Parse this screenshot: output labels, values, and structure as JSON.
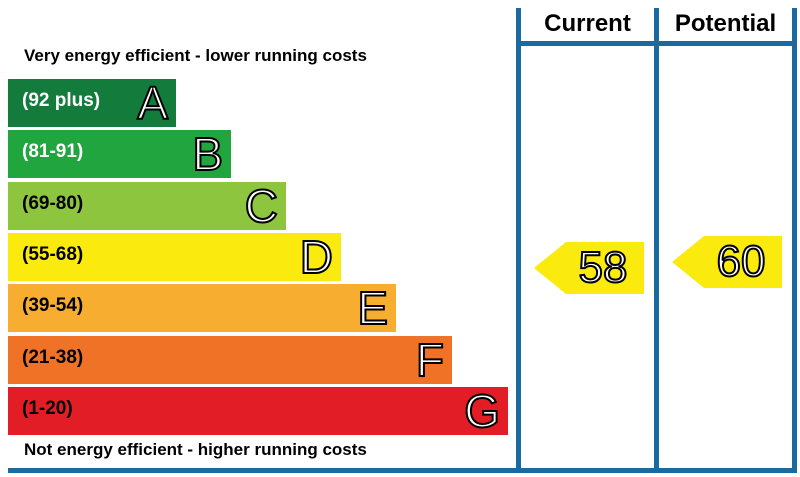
{
  "captions": {
    "top": "Very energy efficient - lower running costs",
    "bottom": "Not energy efficient - higher running costs"
  },
  "columns": {
    "current": "Current",
    "potential": "Potential"
  },
  "bands": [
    {
      "letter": "A",
      "range": "(92 plus)",
      "color": "#137c3d",
      "text_color": "#ffffff"
    },
    {
      "letter": "B",
      "range": "(81-91)",
      "color": "#21a53e",
      "text_color": "#ffffff"
    },
    {
      "letter": "C",
      "range": "(69-80)",
      "color": "#8dc53f",
      "text_color": "#000000"
    },
    {
      "letter": "D",
      "range": "(55-68)",
      "color": "#fbea0e",
      "text_color": "#000000"
    },
    {
      "letter": "E",
      "range": "(39-54)",
      "color": "#f7ae30",
      "text_color": "#000000"
    },
    {
      "letter": "F",
      "range": "(21-38)",
      "color": "#ef7226",
      "text_color": "#000000"
    },
    {
      "letter": "G",
      "range": "(1-20)",
      "color": "#e31d25",
      "text_color": "#000000"
    }
  ],
  "ratings": {
    "current": {
      "value": "58",
      "color": "#fbea0e"
    },
    "potential": {
      "value": "60",
      "color": "#fbea0e"
    }
  },
  "frame_color": "#1a6aa0"
}
